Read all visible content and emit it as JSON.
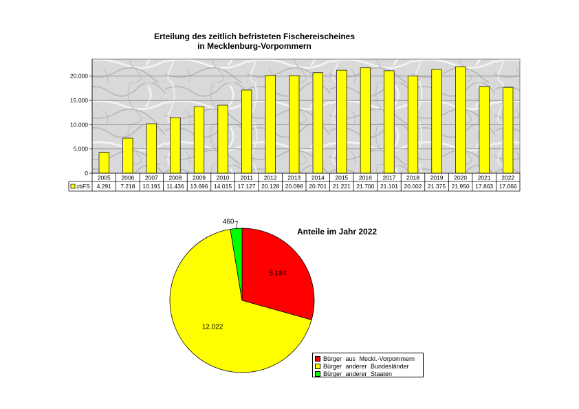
{
  "bar_title_line1": "Erteilung des zeitlich befristeten Fischereischeines",
  "bar_title_line2": "in Mecklenburg-Vorpommern",
  "pie_title": "Anteile im Jahr 2022",
  "chart_data": [
    {
      "type": "bar",
      "title": "Erteilung des zeitlich befristeten Fischereischeines in Mecklenburg-Vorpommern",
      "categories": [
        "2005",
        "2006",
        "2007",
        "2008",
        "2009",
        "2010",
        "2011",
        "2012",
        "2013",
        "2014",
        "2015",
        "2016",
        "2017",
        "2018",
        "2019",
        "2020",
        "2021",
        "2022"
      ],
      "series": [
        {
          "name": "zbFS",
          "values": [
            4291,
            7218,
            10191,
            11436,
            13696,
            14015,
            17127,
            20128,
            20098,
            20701,
            21221,
            21700,
            21101,
            20002,
            21375,
            21950,
            17863,
            17666
          ],
          "labels": [
            "4.291",
            "7.218",
            "10.191",
            "11.436",
            "13.696",
            "14.015",
            "17.127",
            "20.128",
            "20.098",
            "20.701",
            "21.221",
            "21.700",
            "21.101",
            "20.002",
            "21.375",
            "21.950",
            "17.863",
            "17.666"
          ],
          "color": "#ffff00"
        }
      ],
      "yticks": [
        0,
        5000,
        10000,
        15000,
        20000
      ],
      "ytick_labels": [
        "0",
        "5.000",
        "10.000",
        "15.000",
        "20.000"
      ],
      "ylim": [
        0,
        23500
      ],
      "grid": true,
      "data_table": true,
      "plot_background": "marble-grey"
    },
    {
      "type": "pie",
      "title": "Anteile im Jahr 2022",
      "labels": [
        "Bürger aus Meckl.-Vorpommern",
        "Bürger anderer Bundesländer",
        "Bürger anderer Staaten"
      ],
      "values": [
        5184,
        12022,
        460
      ],
      "value_labels": [
        "5.184",
        "12.022",
        "460"
      ],
      "colors": [
        "#ff0000",
        "#ffff00",
        "#00ff00"
      ],
      "legend": "bottom-right"
    }
  ]
}
